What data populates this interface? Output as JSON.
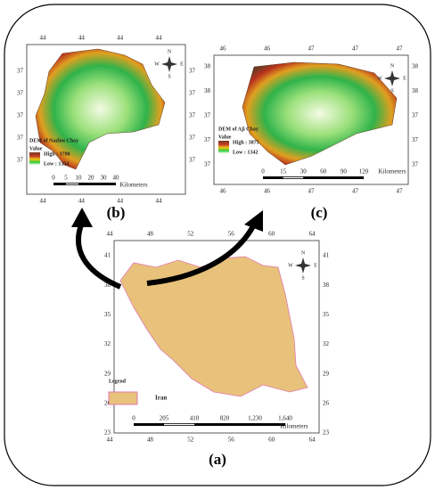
{
  "panels": [
    {
      "label": "(b)",
      "top_ticks": [
        "44",
        "44",
        "44",
        "44"
      ],
      "bottom_ticks": [
        "44",
        "44",
        "44",
        "44"
      ],
      "left_ticks": [
        "37",
        "37",
        "37",
        "37",
        "37"
      ],
      "right_ticks": [
        "37",
        "37",
        "37",
        "37",
        "37"
      ],
      "legend": {
        "title": "DEM of Nazlou Chay",
        "value": "Value",
        "high": "High : 3780",
        "low": "Low : 1354"
      },
      "scale": {
        "ticks": [
          "0",
          "5",
          "10",
          "20",
          "30",
          "40"
        ],
        "unit": "Kilometers"
      }
    },
    {
      "label": "(c)",
      "top_ticks": [
        "46",
        "46",
        "47",
        "47",
        "47"
      ],
      "bottom_ticks": [
        "46",
        "46",
        "47",
        "47",
        "47"
      ],
      "left_ticks": [
        "38",
        "38",
        "37",
        "37",
        "37"
      ],
      "right_ticks": [
        "38",
        "38",
        "37",
        "37",
        "37"
      ],
      "legend": {
        "title": "DEM of Aji Chay",
        "value": "Value",
        "high": "High : 3875",
        "low": "Low : 1342"
      },
      "scale": {
        "ticks": [
          "0",
          "15",
          "30",
          "60",
          "90",
          "120"
        ],
        "unit": "Kilometers"
      }
    },
    {
      "label": "(a)",
      "top_ticks": [
        "44",
        "48",
        "52",
        "56",
        "60",
        "64"
      ],
      "bottom_ticks": [
        "44",
        "48",
        "52",
        "56",
        "60",
        "64"
      ],
      "left_ticks": [
        "41",
        "38",
        "35",
        "32",
        "29",
        "26",
        "23"
      ],
      "right_ticks": [
        "41",
        "38",
        "35",
        "32",
        "29",
        "26",
        "23"
      ],
      "legend": {
        "title": "Legend",
        "item": "Iran"
      },
      "scale": {
        "ticks": [
          "0",
          "205",
          "410",
          "820",
          "1,230",
          "1,640"
        ],
        "unit": "Kilometers"
      }
    }
  ],
  "compass": [
    "N",
    "E",
    "S",
    "W"
  ]
}
